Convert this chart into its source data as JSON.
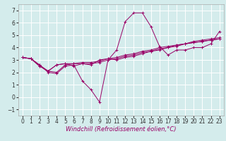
{
  "title": "",
  "xlabel": "Windchill (Refroidissement éolien,°C)",
  "bg_color": "#d4ecec",
  "grid_color": "#ffffff",
  "line_color": "#990066",
  "xlim": [
    -0.5,
    23.5
  ],
  "ylim": [
    -1.5,
    7.5
  ],
  "xticks": [
    0,
    1,
    2,
    3,
    4,
    5,
    6,
    7,
    8,
    9,
    10,
    11,
    12,
    13,
    14,
    15,
    16,
    17,
    18,
    19,
    20,
    21,
    22,
    23
  ],
  "yticks": [
    -1,
    0,
    1,
    2,
    3,
    4,
    5,
    6,
    7
  ],
  "lines": [
    [
      3.2,
      3.1,
      2.6,
      2.0,
      1.9,
      2.5,
      2.6,
      1.3,
      0.6,
      -0.4,
      3.0,
      3.8,
      6.1,
      6.8,
      6.8,
      5.7,
      4.1,
      3.4,
      3.8,
      3.8,
      4.0,
      4.0,
      4.3,
      5.3
    ],
    [
      3.2,
      3.1,
      2.6,
      2.1,
      2.6,
      2.7,
      2.5,
      2.7,
      2.6,
      3.0,
      3.1,
      3.0,
      3.2,
      3.3,
      3.5,
      3.7,
      3.8,
      4.0,
      4.1,
      4.3,
      4.4,
      4.5,
      4.6,
      4.7
    ],
    [
      3.2,
      3.1,
      2.5,
      2.1,
      2.0,
      2.6,
      2.7,
      2.7,
      2.7,
      2.8,
      3.0,
      3.1,
      3.3,
      3.4,
      3.6,
      3.7,
      3.9,
      4.0,
      4.2,
      4.3,
      4.4,
      4.5,
      4.6,
      4.7
    ],
    [
      3.2,
      3.1,
      2.5,
      2.1,
      2.6,
      2.7,
      2.7,
      2.8,
      2.8,
      2.9,
      3.1,
      3.2,
      3.4,
      3.5,
      3.7,
      3.8,
      4.0,
      4.1,
      4.2,
      4.3,
      4.5,
      4.6,
      4.7,
      4.8
    ]
  ],
  "xlabel_fontsize": 6,
  "tick_fontsize": 5.5
}
